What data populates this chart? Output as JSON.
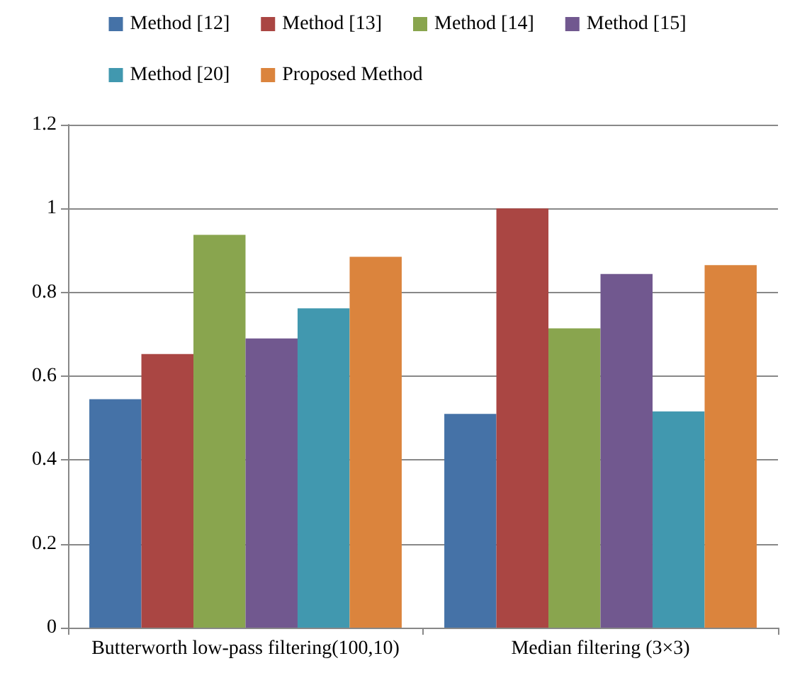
{
  "chart_data": {
    "type": "bar",
    "categories": [
      "Butterworth low-pass filtering(100,10)",
      "Median filtering (3×3)"
    ],
    "series": [
      {
        "name": "Method [12]",
        "color": "#4572a7",
        "values": [
          0.545,
          0.51
        ]
      },
      {
        "name": "Method [13]",
        "color": "#aa4643",
        "values": [
          0.653,
          1.0
        ]
      },
      {
        "name": "Method [14]",
        "color": "#89a54e",
        "values": [
          0.937,
          0.714
        ]
      },
      {
        "name": "Method [15]",
        "color": "#71588f",
        "values": [
          0.69,
          0.844
        ]
      },
      {
        "name": "Method [20]",
        "color": "#4198af",
        "values": [
          0.762,
          0.516
        ]
      },
      {
        "name": "Proposed Method",
        "color": "#db843d",
        "values": [
          0.885,
          0.865
        ]
      }
    ],
    "ylim": [
      0,
      1.2
    ],
    "yticks": [
      0,
      0.2,
      0.4,
      0.6,
      0.8,
      1,
      1.2
    ],
    "grid": "y",
    "legend": "top"
  }
}
